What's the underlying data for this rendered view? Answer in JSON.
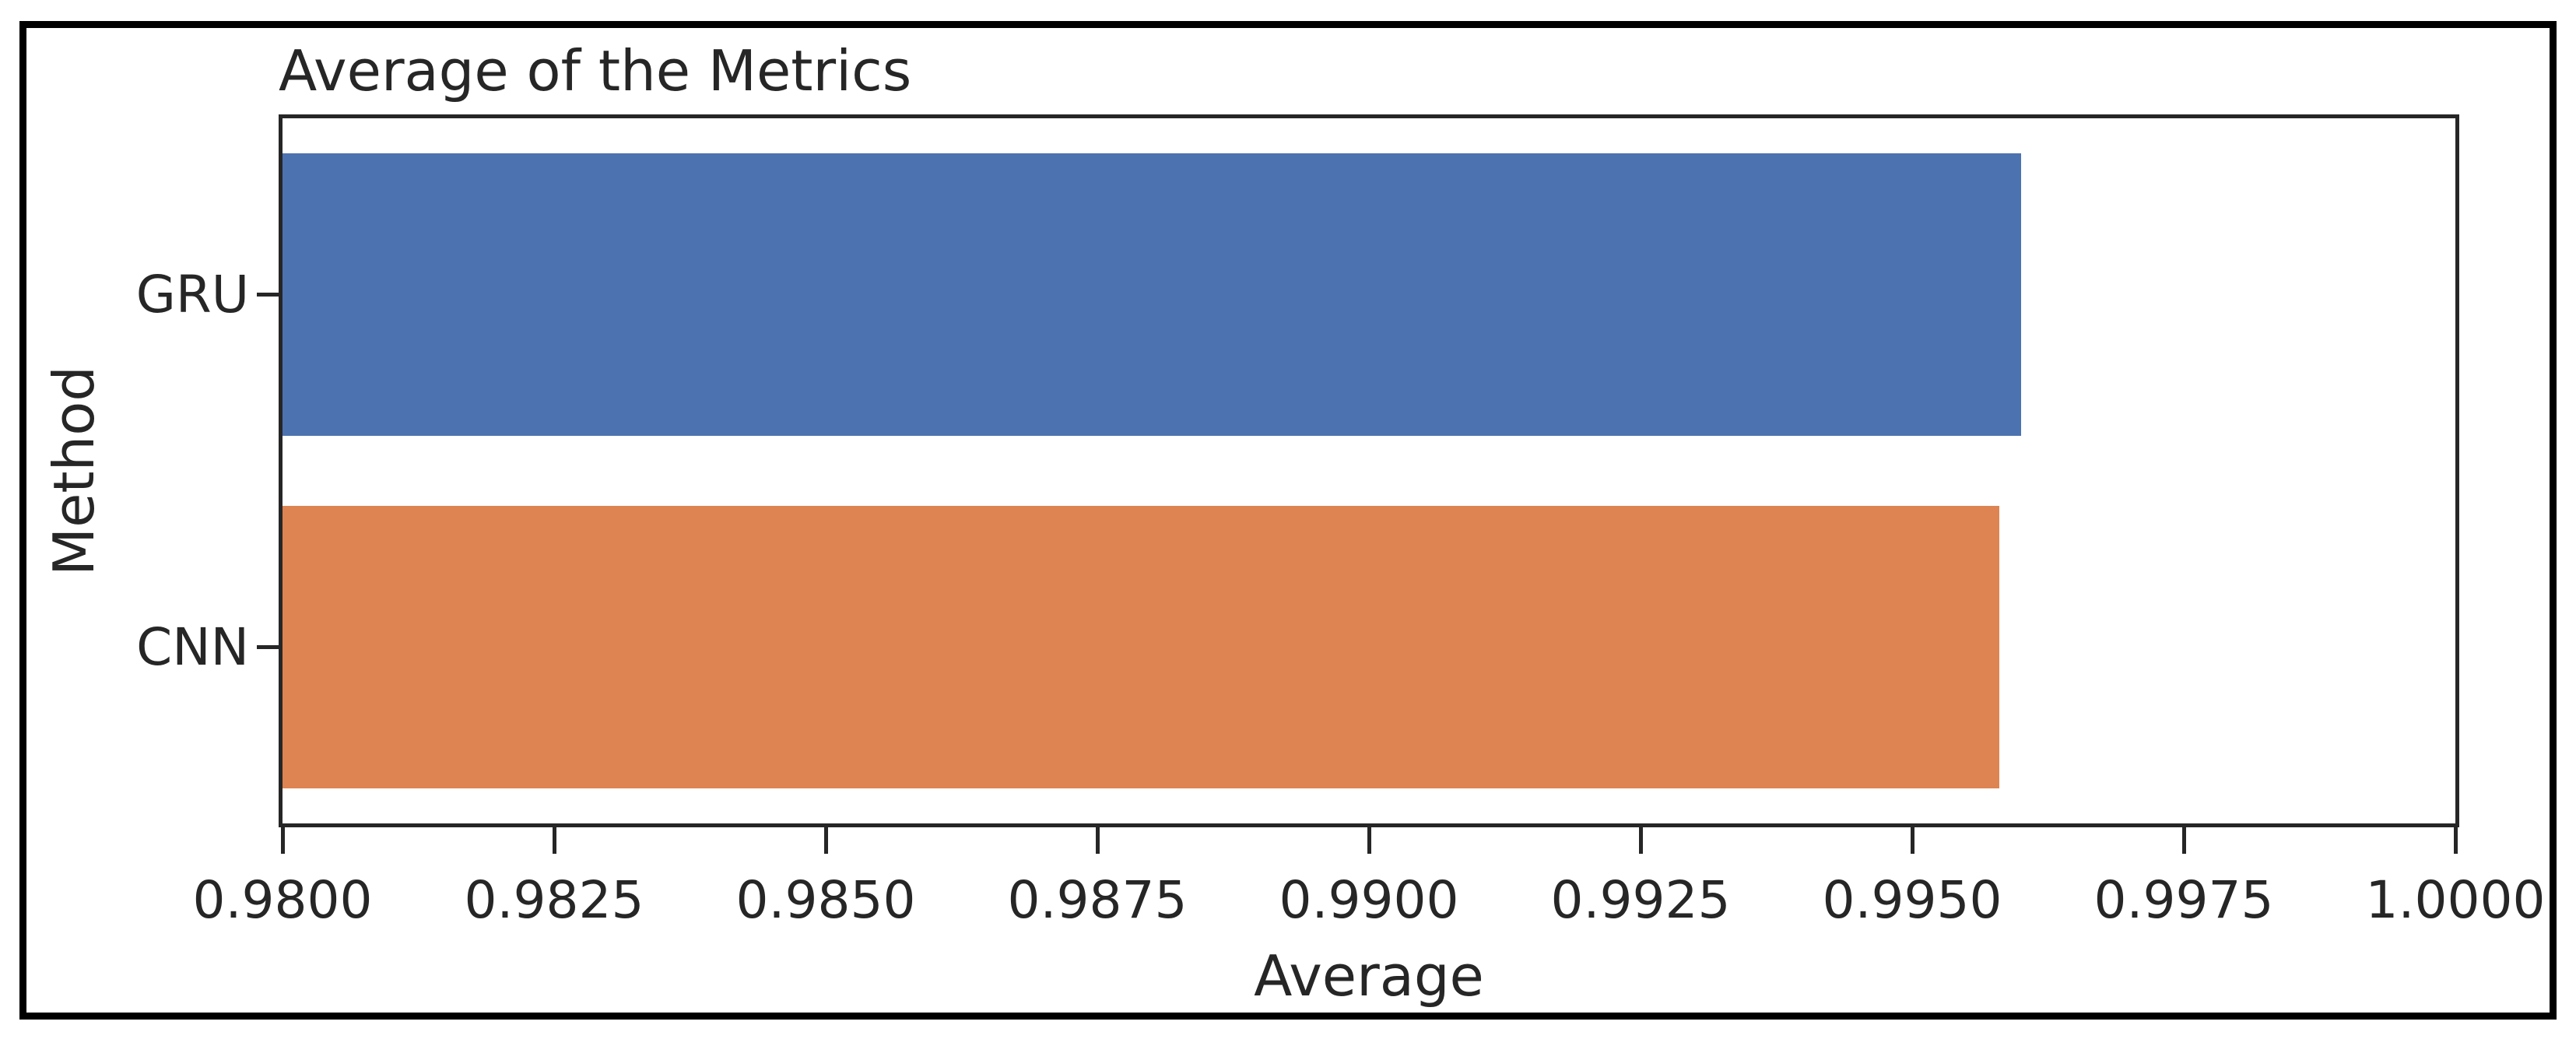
{
  "chart_data": {
    "type": "bar",
    "orientation": "horizontal",
    "title": "Average of the Metrics",
    "title_loc": "left",
    "xlabel": "Average",
    "ylabel": "Method",
    "categories": [
      "GRU",
      "CNN"
    ],
    "values": [
      0.996,
      0.9958
    ],
    "bar_colors": [
      "#4C72B0",
      "#DD8452"
    ],
    "xlim": [
      0.98,
      1.0
    ],
    "xticks": [
      0.98,
      0.9825,
      0.985,
      0.9875,
      0.99,
      0.9925,
      0.995,
      0.9975,
      1.0
    ],
    "xtick_labels": [
      "0.9800",
      "0.9825",
      "0.9850",
      "0.9875",
      "0.9900",
      "0.9925",
      "0.9950",
      "0.9975",
      "1.0000"
    ],
    "bar_fraction": 0.8,
    "grid": false,
    "legend_position": "none",
    "styles": {
      "axis_color": "#262626",
      "text_color": "#262626",
      "figure_border_color": "#000000",
      "background": "#ffffff"
    }
  }
}
